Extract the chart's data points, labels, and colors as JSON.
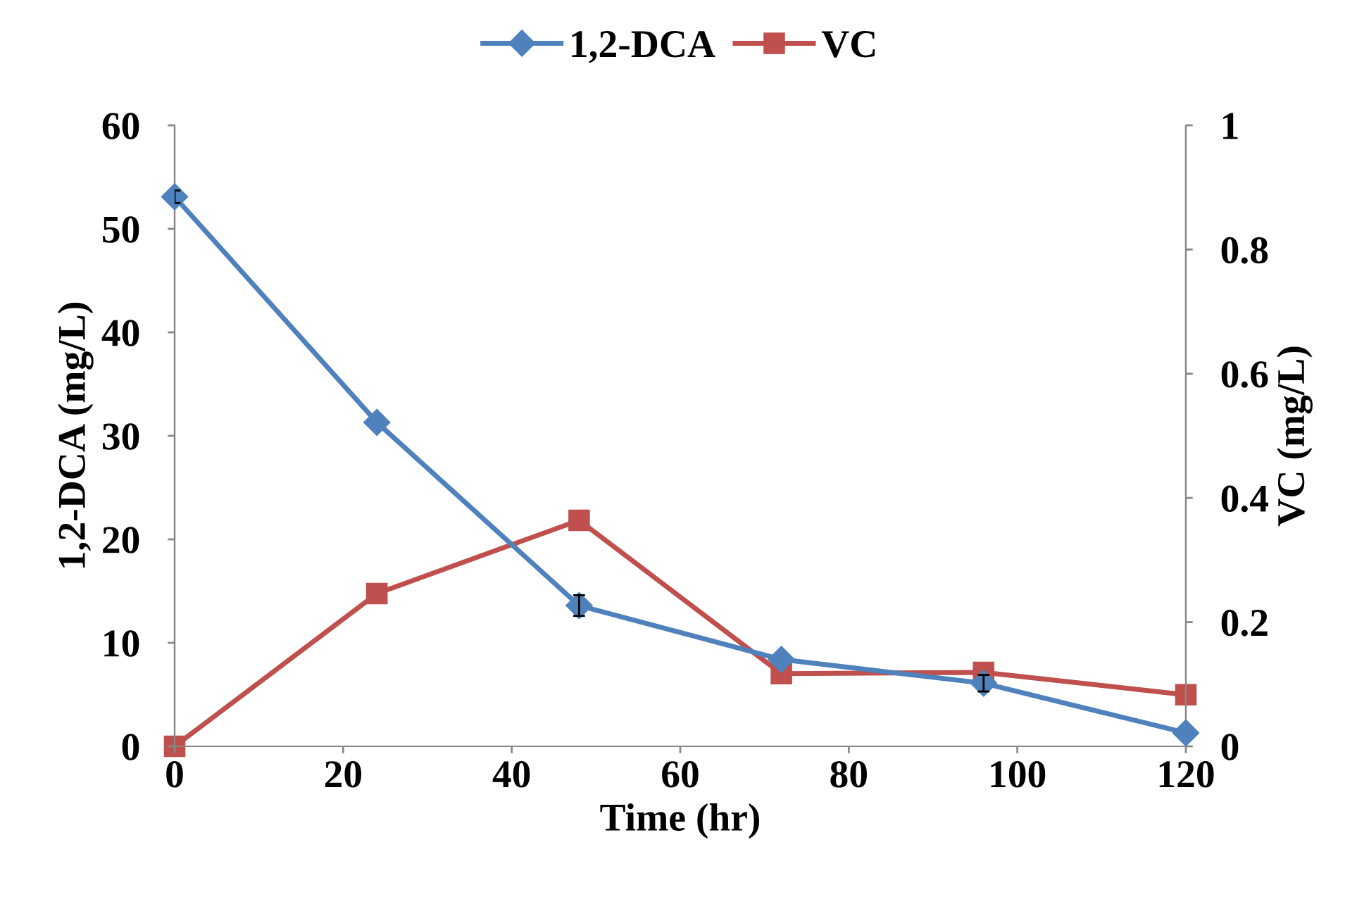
{
  "chart_data": {
    "type": "line",
    "xlabel": "Time (hr)",
    "ylabel": "1,2-DCA (mg/L)",
    "y2label": "VC (mg/L)",
    "x": [
      0,
      24,
      48,
      72,
      96,
      120
    ],
    "series": [
      {
        "name": "1,2-DCA",
        "color": "#4f81bd",
        "marker": "diamond",
        "values": [
          53.1,
          31.3,
          13.6,
          8.4,
          6.1,
          1.3
        ],
        "errors": [
          0.6,
          null,
          1,
          null,
          0.8,
          null
        ]
      },
      {
        "name": "VC",
        "color": "#c0504d",
        "marker": "square",
        "axis": "y2",
        "values": [
          0,
          0.246,
          0.364,
          0.117,
          0.119,
          0.083
        ]
      }
    ],
    "xlim": [
      0,
      120
    ],
    "xticks": [
      0,
      20,
      40,
      60,
      80,
      100,
      120
    ],
    "ylim": [
      0,
      60
    ],
    "yticks": [
      0,
      10,
      20,
      30,
      40,
      50,
      60
    ],
    "y2lim": [
      0,
      1
    ],
    "y2ticks": [
      0,
      0.2,
      0.4,
      0.6,
      0.8,
      1
    ],
    "grid": false,
    "legend": "top",
    "line_style": "solid"
  }
}
